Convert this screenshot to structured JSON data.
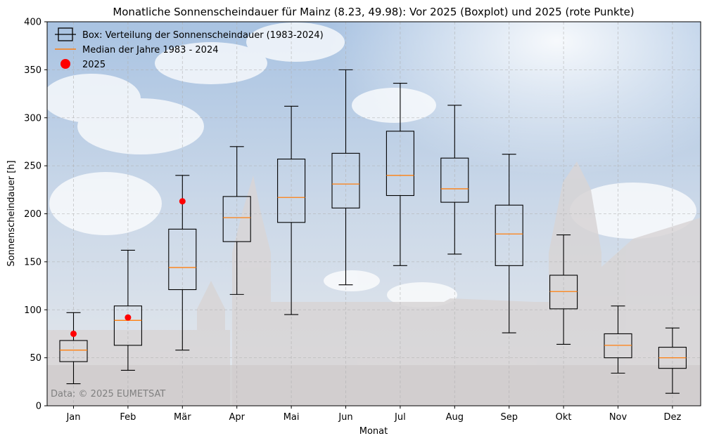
{
  "chart_data": {
    "type": "box",
    "title": "Monatliche Sonnenscheindauer für Mainz (8.23, 49.98): Vor 2025 (Boxplot) und 2025 (rote Punkte)",
    "xlabel": "Monat",
    "ylabel": "Sonnenscheindauer [h]",
    "ylim": [
      0,
      400
    ],
    "yticks": [
      0,
      50,
      100,
      150,
      200,
      250,
      300,
      350,
      400
    ],
    "grid": true,
    "legend_position": "top-left",
    "categories": [
      "Jan",
      "Feb",
      "Mär",
      "Apr",
      "Mai",
      "Jun",
      "Jul",
      "Aug",
      "Sep",
      "Okt",
      "Nov",
      "Dez"
    ],
    "boxes": [
      {
        "whisker_low": 23,
        "q1": 46,
        "median": 58,
        "q3": 68,
        "whisker_high": 97
      },
      {
        "whisker_low": 37,
        "q1": 63,
        "median": 89,
        "q3": 104,
        "whisker_high": 162
      },
      {
        "whisker_low": 58,
        "q1": 121,
        "median": 144,
        "q3": 184,
        "whisker_high": 240
      },
      {
        "whisker_low": 116,
        "q1": 171,
        "median": 196,
        "q3": 218,
        "whisker_high": 270
      },
      {
        "whisker_low": 95,
        "q1": 191,
        "median": 217,
        "q3": 257,
        "whisker_high": 312
      },
      {
        "whisker_low": 126,
        "q1": 206,
        "median": 231,
        "q3": 263,
        "whisker_high": 350
      },
      {
        "whisker_low": 146,
        "q1": 219,
        "median": 240,
        "q3": 286,
        "whisker_high": 336
      },
      {
        "whisker_low": 158,
        "q1": 212,
        "median": 226,
        "q3": 258,
        "whisker_high": 313
      },
      {
        "whisker_low": 76,
        "q1": 146,
        "median": 179,
        "q3": 209,
        "whisker_high": 262
      },
      {
        "whisker_low": 64,
        "q1": 101,
        "median": 119,
        "q3": 136,
        "whisker_high": 178
      },
      {
        "whisker_low": 34,
        "q1": 50,
        "median": 63,
        "q3": 75,
        "whisker_high": 104
      },
      {
        "whisker_low": 13,
        "q1": 39,
        "median": 50,
        "q3": 61,
        "whisker_high": 81
      }
    ],
    "series_2025": {
      "name": "2025",
      "categories": [
        "Jan",
        "Feb",
        "Mär"
      ],
      "values": [
        75,
        92,
        213
      ]
    },
    "legend": {
      "box": "Box: Verteilung der Sonnenscheindauer (1983-2024)",
      "median": "Median der Jahre 1983 - 2024",
      "points": "2025"
    },
    "annotation": "Data: © 2025 EUMETSAT",
    "colors": {
      "box": "#000000",
      "median": "#ff7f0e",
      "points": "#ff0000",
      "grid": "#b0b0b0",
      "sky_top": "#9fbde0",
      "sky_bottom": "#e6ebf1"
    }
  }
}
